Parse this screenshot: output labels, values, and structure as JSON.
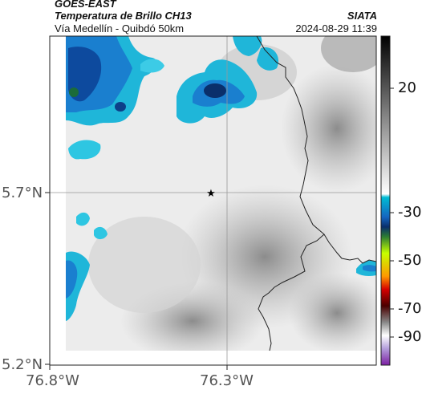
{
  "header": {
    "satellite": "GOES-EAST",
    "product": "Temperatura de Brillo CH13",
    "route": "Vía Medellín - Quibdó 50km",
    "org": "SIATA",
    "datetime": "2024-08-29 11:39"
  },
  "map": {
    "y_ticks": [
      "5.7°N",
      "5.2°N"
    ],
    "x_ticks": [
      "76.8°W",
      "76.3°W"
    ],
    "center_marker": "star-marker"
  },
  "colorbar": {
    "ticks": [
      "20",
      "-30",
      "-50",
      "-70",
      "-90"
    ],
    "colors": [
      "#000000",
      "#ffffff",
      "#00bcd4",
      "#1565c0",
      "#0a2f6b",
      "#2e7d32",
      "#c6ff00",
      "#ff9800",
      "#d50000",
      "#4a0000",
      "#b39ddb",
      "#7b1fa2"
    ]
  }
}
